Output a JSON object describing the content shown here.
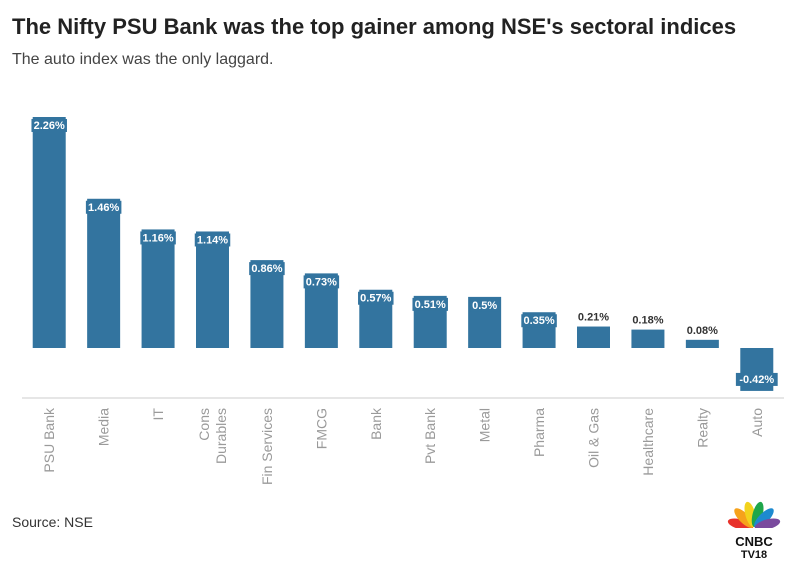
{
  "header": {
    "title": "The Nifty PSU Bank was the top gainer among NSE's sectoral indices",
    "subtitle": "The auto index was the only laggard."
  },
  "footer": {
    "source": "Source: NSE",
    "logo_text_top": "CNBC",
    "logo_text_bottom": "TV18"
  },
  "colors": {
    "bar": "#33749f",
    "label_bg": "#33749f",
    "label_text_inside": "#ffffff",
    "label_text_outside": "#333333",
    "axis": "#cccccc"
  },
  "chart_data": {
    "type": "bar",
    "categories": [
      "PSU Bank",
      "Media",
      "IT",
      "Cons Durables",
      "Fin Services",
      "FMCG",
      "Bank",
      "Pvt Bank",
      "Metal",
      "Pharma",
      "Oil & Gas",
      "Healthcare",
      "Realty",
      "Auto"
    ],
    "category_lines": [
      [
        "PSU Bank"
      ],
      [
        "Media"
      ],
      [
        "IT"
      ],
      [
        "Cons",
        "Durables"
      ],
      [
        "Fin Services"
      ],
      [
        "FMCG"
      ],
      [
        "Bank"
      ],
      [
        "Pvt Bank"
      ],
      [
        "Metal"
      ],
      [
        "Pharma"
      ],
      [
        "Oil & Gas"
      ],
      [
        "Healthcare"
      ],
      [
        "Realty"
      ],
      [
        "Auto"
      ]
    ],
    "values": [
      2.26,
      1.46,
      1.16,
      1.14,
      0.86,
      0.73,
      0.57,
      0.51,
      0.5,
      0.35,
      0.21,
      0.18,
      0.08,
      -0.42
    ],
    "labels": [
      "2.26%",
      "1.46%",
      "1.16%",
      "1.14%",
      "0.86%",
      "0.73%",
      "0.57%",
      "0.51%",
      "0.5%",
      "0.35%",
      "0.21%",
      "0.18%",
      "0.08%",
      "-0.42%"
    ],
    "title": "The Nifty PSU Bank was the top gainer among NSE's sectoral indices",
    "subtitle": "The auto index was the only laggard.",
    "xlabel": "",
    "ylabel": "",
    "ylim": [
      -0.5,
      2.3
    ],
    "grid": false,
    "legend": "none"
  }
}
